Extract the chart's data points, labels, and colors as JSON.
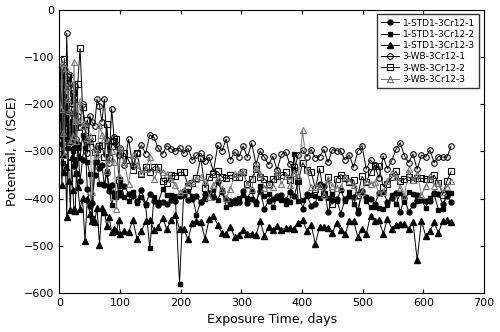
{
  "title": "",
  "xlabel": "Exposure Time, days",
  "ylabel": "Potential, V (SCE)",
  "xlim": [
    0,
    700
  ],
  "ylim": [
    -600,
    0
  ],
  "xticks": [
    0,
    100,
    200,
    300,
    400,
    500,
    600,
    700
  ],
  "yticks": [
    0,
    -100,
    -200,
    -300,
    -400,
    -500,
    -600
  ],
  "legend_labels": [
    "1-STD1-3Cr12-1",
    "1-STD1-3Cr12-2",
    "1-STD1-3Cr12-3",
    "3-WB-3Cr12-1",
    "3-WB-3Cr12-2",
    "3-WB-3Cr12-3"
  ],
  "background_color": "#ffffff",
  "figsize": [
    5.0,
    3.32
  ],
  "dpi": 100
}
